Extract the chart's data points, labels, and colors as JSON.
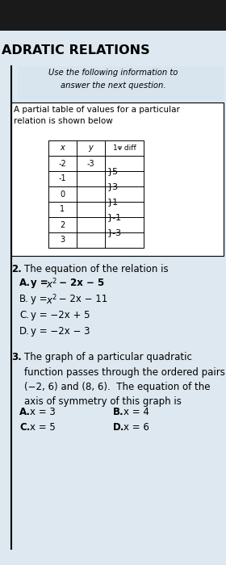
{
  "title": "ADRATIC RELATIONS",
  "page_bg": "#cddce8",
  "paper_bg": "#dde8f0",
  "dark_top": "#111111",
  "info_text": "Use the following information to\nanswer the next question.",
  "table_desc": "A partial table of values for a particular\nrelation is shown below",
  "x_vals": [
    "-2",
    "-1",
    "0",
    "1",
    "2",
    "3"
  ],
  "y_val": "-3",
  "diff_labels": [
    "}5",
    "}3",
    "}1",
    "}-1",
    "}-3"
  ],
  "q2_stem": "The equation of the relation is",
  "q2_opts": [
    [
      "A.",
      "y = x² − 2x − 5"
    ],
    [
      "B.",
      "y = x² − 2x − 11"
    ],
    [
      "C.",
      "y = −2x + 5"
    ],
    [
      "D.",
      "y = −2x − 3"
    ]
  ],
  "q3_stem": "The graph of a particular quadratic\nfunction passes through the ordered pairs\n(−2, 6) and (8, 6).  The equation of the\naxis of symmetry of this graph is",
  "q3_opts_left": [
    "A.  x = 3",
    "C.  x = 5"
  ],
  "q3_opts_right": [
    "B.  x = 4",
    "D.  x = 6"
  ]
}
